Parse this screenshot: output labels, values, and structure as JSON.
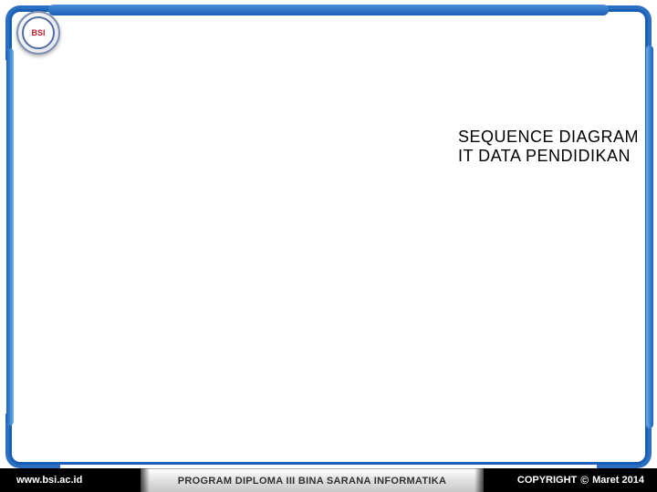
{
  "logo": {
    "text": "BSI"
  },
  "title": {
    "line1": "SEQUENCE DIAGRAM",
    "line2": "IT DATA PENDIDIKAN"
  },
  "footer": {
    "website": "www.bsi.ac.id",
    "program": "PROGRAM DIPLOMA III BINA SARANA INFORMATIKA",
    "copyright_label": "COPYRIGHT",
    "copyright_symbol": "©",
    "date": "Maret 2014"
  },
  "colors": {
    "frame_blue": "#1a5fb4",
    "frame_light": "#6aafee",
    "footer_black": "#000000",
    "footer_gray_top": "#ffffff",
    "footer_gray_bottom": "#c8c8c8",
    "text_black": "#000000",
    "logo_red": "#c02030"
  }
}
